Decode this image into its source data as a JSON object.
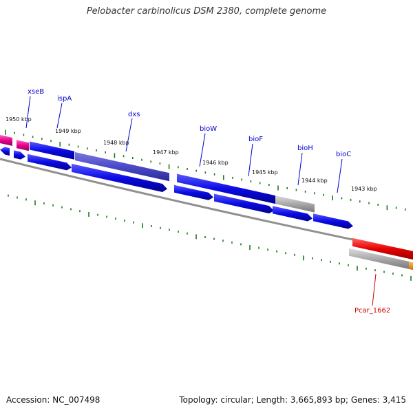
{
  "title": "Pelobacter carbinolicus DSM 2380, complete genome",
  "footer": {
    "accession": "Accession: NC_007498",
    "summary": "Topology: circular; Length: 3,665,893 bp; Genes: 3,415"
  },
  "colors": {
    "forward_gene": "#0a0ae6",
    "reverse_gene": "#0a0ae6",
    "gray_gene": "#a9a9a9",
    "pink_gene": "#e6008a",
    "red_gene": "#e60000",
    "orange_gene": "#f08c00",
    "tick": "#1a7a1a",
    "backbone": "#808080",
    "label_blue": "#0000cc",
    "label_red": "#cc0000"
  },
  "scale_labels": [
    "1950 kbp",
    "1949 kbp",
    "1948 kbp",
    "1947 kbp",
    "1946 kbp",
    "1945 kbp",
    "1944 kbp",
    "1943 kbp"
  ],
  "gene_labels": [
    {
      "text": "xseB",
      "color": "blue"
    },
    {
      "text": "ispA",
      "color": "blue"
    },
    {
      "text": "dxs",
      "color": "blue"
    },
    {
      "text": "bioW",
      "color": "blue"
    },
    {
      "text": "bioF",
      "color": "blue"
    },
    {
      "text": "bioH",
      "color": "blue"
    },
    {
      "text": "bioC",
      "color": "blue"
    },
    {
      "text": "Pcar_1662",
      "color": "red"
    }
  ]
}
